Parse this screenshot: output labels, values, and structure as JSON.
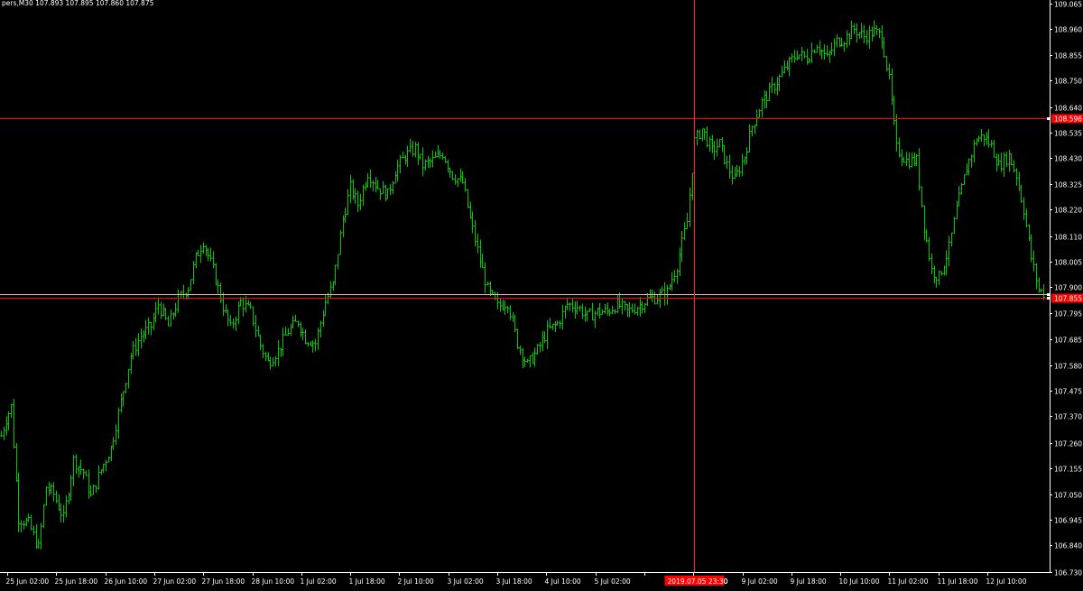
{
  "header": {
    "symbol_info": "pers,M30  107.893 107.895 107.860 107.875"
  },
  "colors": {
    "background": "#000000",
    "candle": "#00c800",
    "axis": "#ffffff",
    "hline": "#ff0000",
    "hline_light": "#ffb0b0",
    "crosshair": "#ff2020",
    "badge": "#ff0000",
    "badge_text": "#ffffff"
  },
  "chart_data": {
    "type": "line",
    "series": [
      {
        "style": "bar",
        "points": [
          [
            0,
            107.29
          ],
          [
            2,
            107.36
          ],
          [
            4,
            107.41
          ],
          [
            7,
            106.95
          ],
          [
            11,
            106.93
          ],
          [
            15,
            106.83
          ],
          [
            18,
            107.08
          ],
          [
            21,
            107.05
          ],
          [
            25,
            106.95
          ],
          [
            29,
            107.19
          ],
          [
            33,
            107.14
          ],
          [
            36,
            107.04
          ],
          [
            40,
            107.15
          ],
          [
            44,
            107.24
          ],
          [
            48,
            107.43
          ],
          [
            52,
            107.62
          ],
          [
            56,
            107.7
          ],
          [
            60,
            107.74
          ],
          [
            63,
            107.83
          ],
          [
            67,
            107.74
          ],
          [
            71,
            107.85
          ],
          [
            75,
            107.9
          ],
          [
            78,
            108.02
          ],
          [
            81,
            108.09
          ],
          [
            85,
            107.97
          ],
          [
            89,
            107.82
          ],
          [
            92,
            107.73
          ],
          [
            96,
            107.84
          ],
          [
            100,
            107.8
          ],
          [
            104,
            107.66
          ],
          [
            107,
            107.59
          ],
          [
            111,
            107.64
          ],
          [
            115,
            107.72
          ],
          [
            119,
            107.76
          ],
          [
            122,
            107.69
          ],
          [
            126,
            107.67
          ],
          [
            130,
            107.84
          ],
          [
            133,
            107.91
          ],
          [
            137,
            108.18
          ],
          [
            140,
            108.31
          ],
          [
            143,
            108.24
          ],
          [
            147,
            108.37
          ],
          [
            151,
            108.31
          ],
          [
            155,
            108.28
          ],
          [
            158,
            108.38
          ],
          [
            162,
            108.44
          ],
          [
            166,
            108.47
          ],
          [
            169,
            108.4
          ],
          [
            173,
            108.42
          ],
          [
            177,
            108.45
          ],
          [
            181,
            108.36
          ],
          [
            185,
            108.33
          ],
          [
            188,
            108.18
          ],
          [
            192,
            108.01
          ],
          [
            195,
            107.89
          ],
          [
            199,
            107.82
          ],
          [
            203,
            107.84
          ],
          [
            207,
            107.67
          ],
          [
            211,
            107.58
          ],
          [
            215,
            107.64
          ],
          [
            219,
            107.72
          ],
          [
            223,
            107.75
          ],
          [
            227,
            107.83
          ],
          [
            231,
            107.82
          ],
          [
            235,
            107.78
          ],
          [
            239,
            107.8
          ],
          [
            243,
            107.8
          ],
          [
            247,
            107.83
          ],
          [
            251,
            107.8
          ],
          [
            255,
            107.82
          ],
          [
            259,
            107.85
          ],
          [
            263,
            107.86
          ],
          [
            267,
            107.88
          ],
          [
            271,
            107.99
          ],
          [
            275,
            108.17
          ],
          [
            278,
            108.5
          ],
          [
            281,
            108.55
          ],
          [
            285,
            108.46
          ],
          [
            288,
            108.49
          ],
          [
            291,
            108.4
          ],
          [
            294,
            108.34
          ],
          [
            298,
            108.44
          ],
          [
            301,
            108.56
          ],
          [
            305,
            108.66
          ],
          [
            308,
            108.7
          ],
          [
            312,
            108.76
          ],
          [
            316,
            108.82
          ],
          [
            319,
            108.86
          ],
          [
            323,
            108.84
          ],
          [
            327,
            108.9
          ],
          [
            331,
            108.84
          ],
          [
            335,
            108.91
          ],
          [
            338,
            108.92
          ],
          [
            342,
            108.96
          ],
          [
            346,
            108.93
          ],
          [
            350,
            108.95
          ],
          [
            353,
            108.93
          ],
          [
            356,
            108.75
          ],
          [
            359,
            108.47
          ],
          [
            363,
            108.42
          ],
          [
            367,
            108.42
          ],
          [
            370,
            108.15
          ],
          [
            373,
            107.97
          ],
          [
            376,
            107.94
          ],
          [
            380,
            108.06
          ],
          [
            383,
            108.22
          ],
          [
            387,
            108.39
          ],
          [
            391,
            108.51
          ],
          [
            394,
            108.52
          ],
          [
            397,
            108.48
          ],
          [
            400,
            108.4
          ],
          [
            404,
            108.44
          ],
          [
            407,
            108.36
          ],
          [
            410,
            108.22
          ],
          [
            413,
            108.02
          ],
          [
            416,
            107.89
          ],
          [
            419,
            107.87
          ]
        ],
        "x_range": [
          0,
          419
        ]
      }
    ],
    "price_levels": [
      "109.065",
      "108.960",
      "108.855",
      "108.750",
      "108.640",
      "108.535",
      "108.430",
      "108.325",
      "108.220",
      "108.110",
      "108.005",
      "107.900",
      "107.795",
      "107.685",
      "107.580",
      "107.475",
      "107.370",
      "107.260",
      "107.155",
      "107.050",
      "106.945",
      "106.840",
      "106.730"
    ],
    "ylim": [
      106.73,
      109.065
    ],
    "time_labels": [
      "25 Jun 02:00",
      "25 Jun 18:00",
      "26 Jun 10:00",
      "27 Jun 02:00",
      "27 Jun 18:00",
      "28 Jun 10:00",
      "1 Jul 02:00",
      "1 Jul 18:00",
      "2 Jul 10:00",
      "3 Jul 02:00",
      "3 Jul 18:00",
      "4 Jul 10:00",
      "5 Jul 02:00",
      "",
      "8 Jul 10:00",
      "9 Jul 02:00",
      "9 Jul 18:00",
      "10 Jul 10:00",
      "11 Jul 02:00",
      "11 Jul 18:00",
      "12 Jul 10:00"
    ],
    "horizontal_lines": [
      {
        "price": 108.596,
        "label": "108.596"
      },
      {
        "price": 107.871,
        "label": ""
      },
      {
        "price": 107.855,
        "label": "107.855"
      }
    ],
    "crosshair": {
      "time_label": "2019.07.05 23:30",
      "x_value": 278
    }
  }
}
